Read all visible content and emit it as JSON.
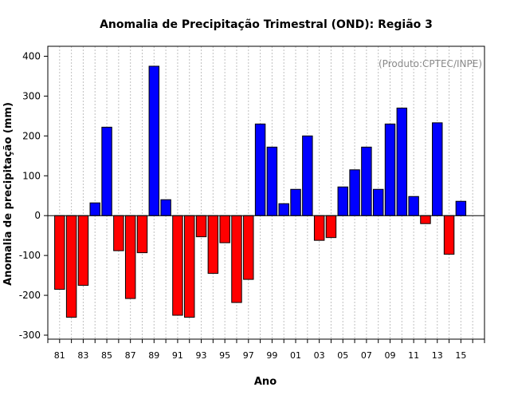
{
  "chart_data": {
    "type": "bar",
    "title": "Anomalia de Precipitação Trimestral (OND): Região 3",
    "xlabel": "Ano",
    "ylabel": "Anomalia de precipitação (mm)",
    "credit": "(Produto:CPTEC/INPE)",
    "ylim": [
      -310,
      425
    ],
    "yticks": [
      -300,
      -200,
      -100,
      0,
      100,
      200,
      300,
      400
    ],
    "xlim": [
      1980.0,
      2017.0
    ],
    "xtick_labels": [
      "81",
      "83",
      "85",
      "87",
      "89",
      "91",
      "93",
      "95",
      "97",
      "99",
      "01",
      "03",
      "05",
      "07",
      "09",
      "11",
      "13",
      "15"
    ],
    "xtick_years": [
      1981,
      1983,
      1985,
      1987,
      1989,
      1991,
      1993,
      1995,
      1997,
      1999,
      2001,
      2003,
      2005,
      2007,
      2009,
      2011,
      2013,
      2015
    ],
    "minor_ticks_every_year": true,
    "grid": "vertical dotted lines at each year",
    "colors": {
      "positive": "#0000ff",
      "negative": "#ff0000",
      "grid": "#c0c0c0"
    },
    "years": [
      1981,
      1982,
      1983,
      1984,
      1985,
      1986,
      1987,
      1988,
      1989,
      1990,
      1991,
      1992,
      1993,
      1994,
      1995,
      1996,
      1997,
      1998,
      1999,
      2000,
      2001,
      2002,
      2003,
      2004,
      2005,
      2006,
      2007,
      2008,
      2009,
      2010,
      2011,
      2012,
      2013,
      2014,
      2015
    ],
    "values": [
      -185,
      -255,
      -175,
      32,
      222,
      -88,
      -208,
      -93,
      375,
      40,
      -250,
      -255,
      -53,
      -145,
      -68,
      -218,
      -160,
      230,
      172,
      30,
      66,
      200,
      -62,
      -55,
      72,
      115,
      172,
      66,
      230,
      270,
      48,
      -20,
      233,
      -97,
      36
    ]
  }
}
